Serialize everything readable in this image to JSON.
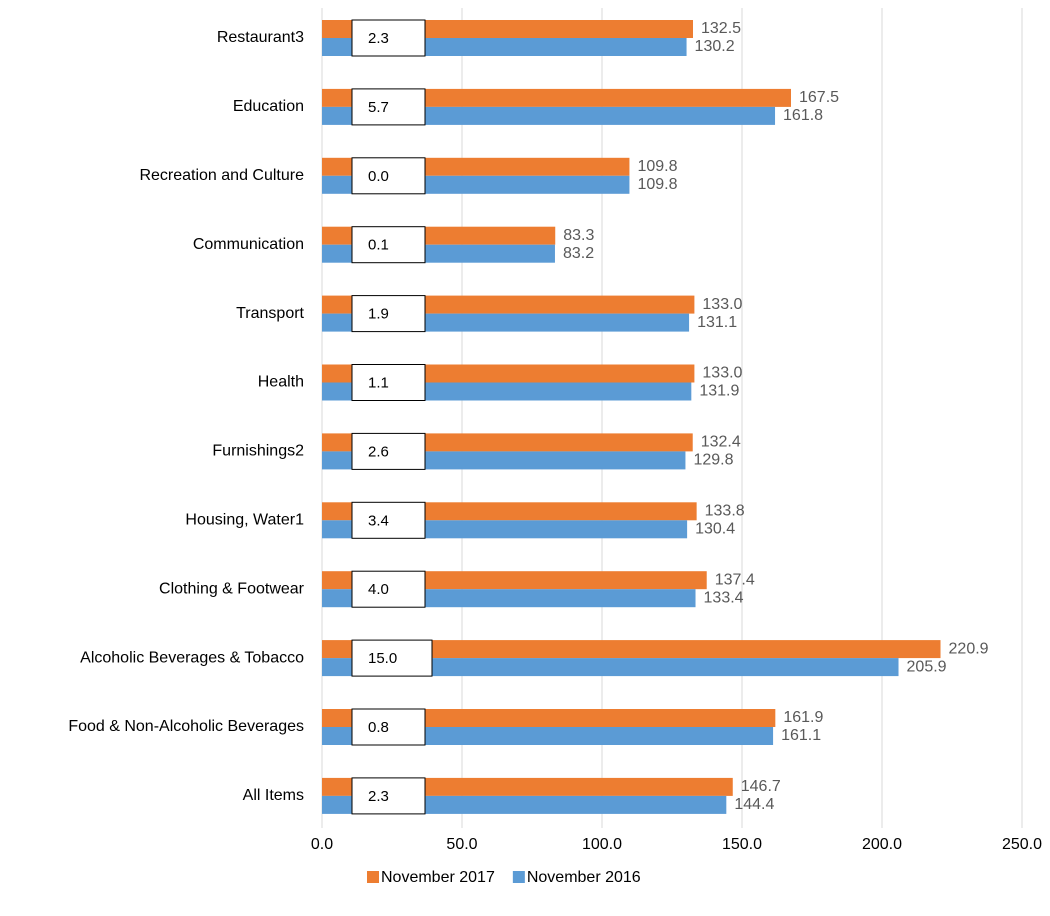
{
  "chart_data": {
    "type": "bar",
    "orientation": "horizontal",
    "categories": [
      "Restaurant3",
      "Education",
      "Recreation and Culture",
      "Communication",
      "Transport",
      "Health",
      "Furnishings2",
      "Housing, Water1",
      "Clothing & Footwear",
      "Alcoholic Beverages & Tobacco",
      "Food & Non-Alcoholic Beverages",
      "All Items"
    ],
    "series": [
      {
        "name": "November 2017",
        "color": "#ed7d31",
        "values": [
          132.5,
          167.5,
          109.8,
          83.3,
          133.0,
          133.0,
          132.4,
          133.8,
          137.4,
          220.9,
          161.9,
          146.7
        ],
        "value_labels": [
          "132.5",
          "167.5",
          "109.8",
          "83.3",
          "133.0",
          "133.0",
          "132.4",
          "133.8",
          "137.4",
          "220.9",
          "161.9",
          "146.7"
        ]
      },
      {
        "name": "November 2016",
        "color": "#5b9bd5",
        "values": [
          130.2,
          161.8,
          109.8,
          83.2,
          131.1,
          131.9,
          129.8,
          130.4,
          133.4,
          205.9,
          161.1,
          144.4
        ],
        "value_labels": [
          "130.2",
          "161.8",
          "109.8",
          "83.2",
          "131.1",
          "131.9",
          "129.8",
          "130.4",
          "133.4",
          "205.9",
          "161.1",
          "144.4"
        ]
      }
    ],
    "annotations": {
      "values": [
        2.3,
        5.7,
        0.0,
        0.1,
        1.9,
        1.1,
        2.6,
        3.4,
        4.0,
        15.0,
        0.8,
        2.3
      ],
      "value_labels": [
        "2.3",
        "5.7",
        "0.0",
        "0.1",
        "1.9",
        "1.1",
        "2.6",
        "3.4",
        "4.0",
        "15.0",
        "0.8",
        "2.3"
      ]
    },
    "xlim": [
      0,
      250
    ],
    "xticks": [
      {
        "value": 0,
        "label": "0.0"
      },
      {
        "value": 50,
        "label": "50.0"
      },
      {
        "value": 100,
        "label": "100.0"
      },
      {
        "value": 150,
        "label": "150.0"
      },
      {
        "value": 200,
        "label": "200.0"
      },
      {
        "value": 250,
        "label": "250.0"
      }
    ],
    "grid": true,
    "legend": "bottom"
  }
}
